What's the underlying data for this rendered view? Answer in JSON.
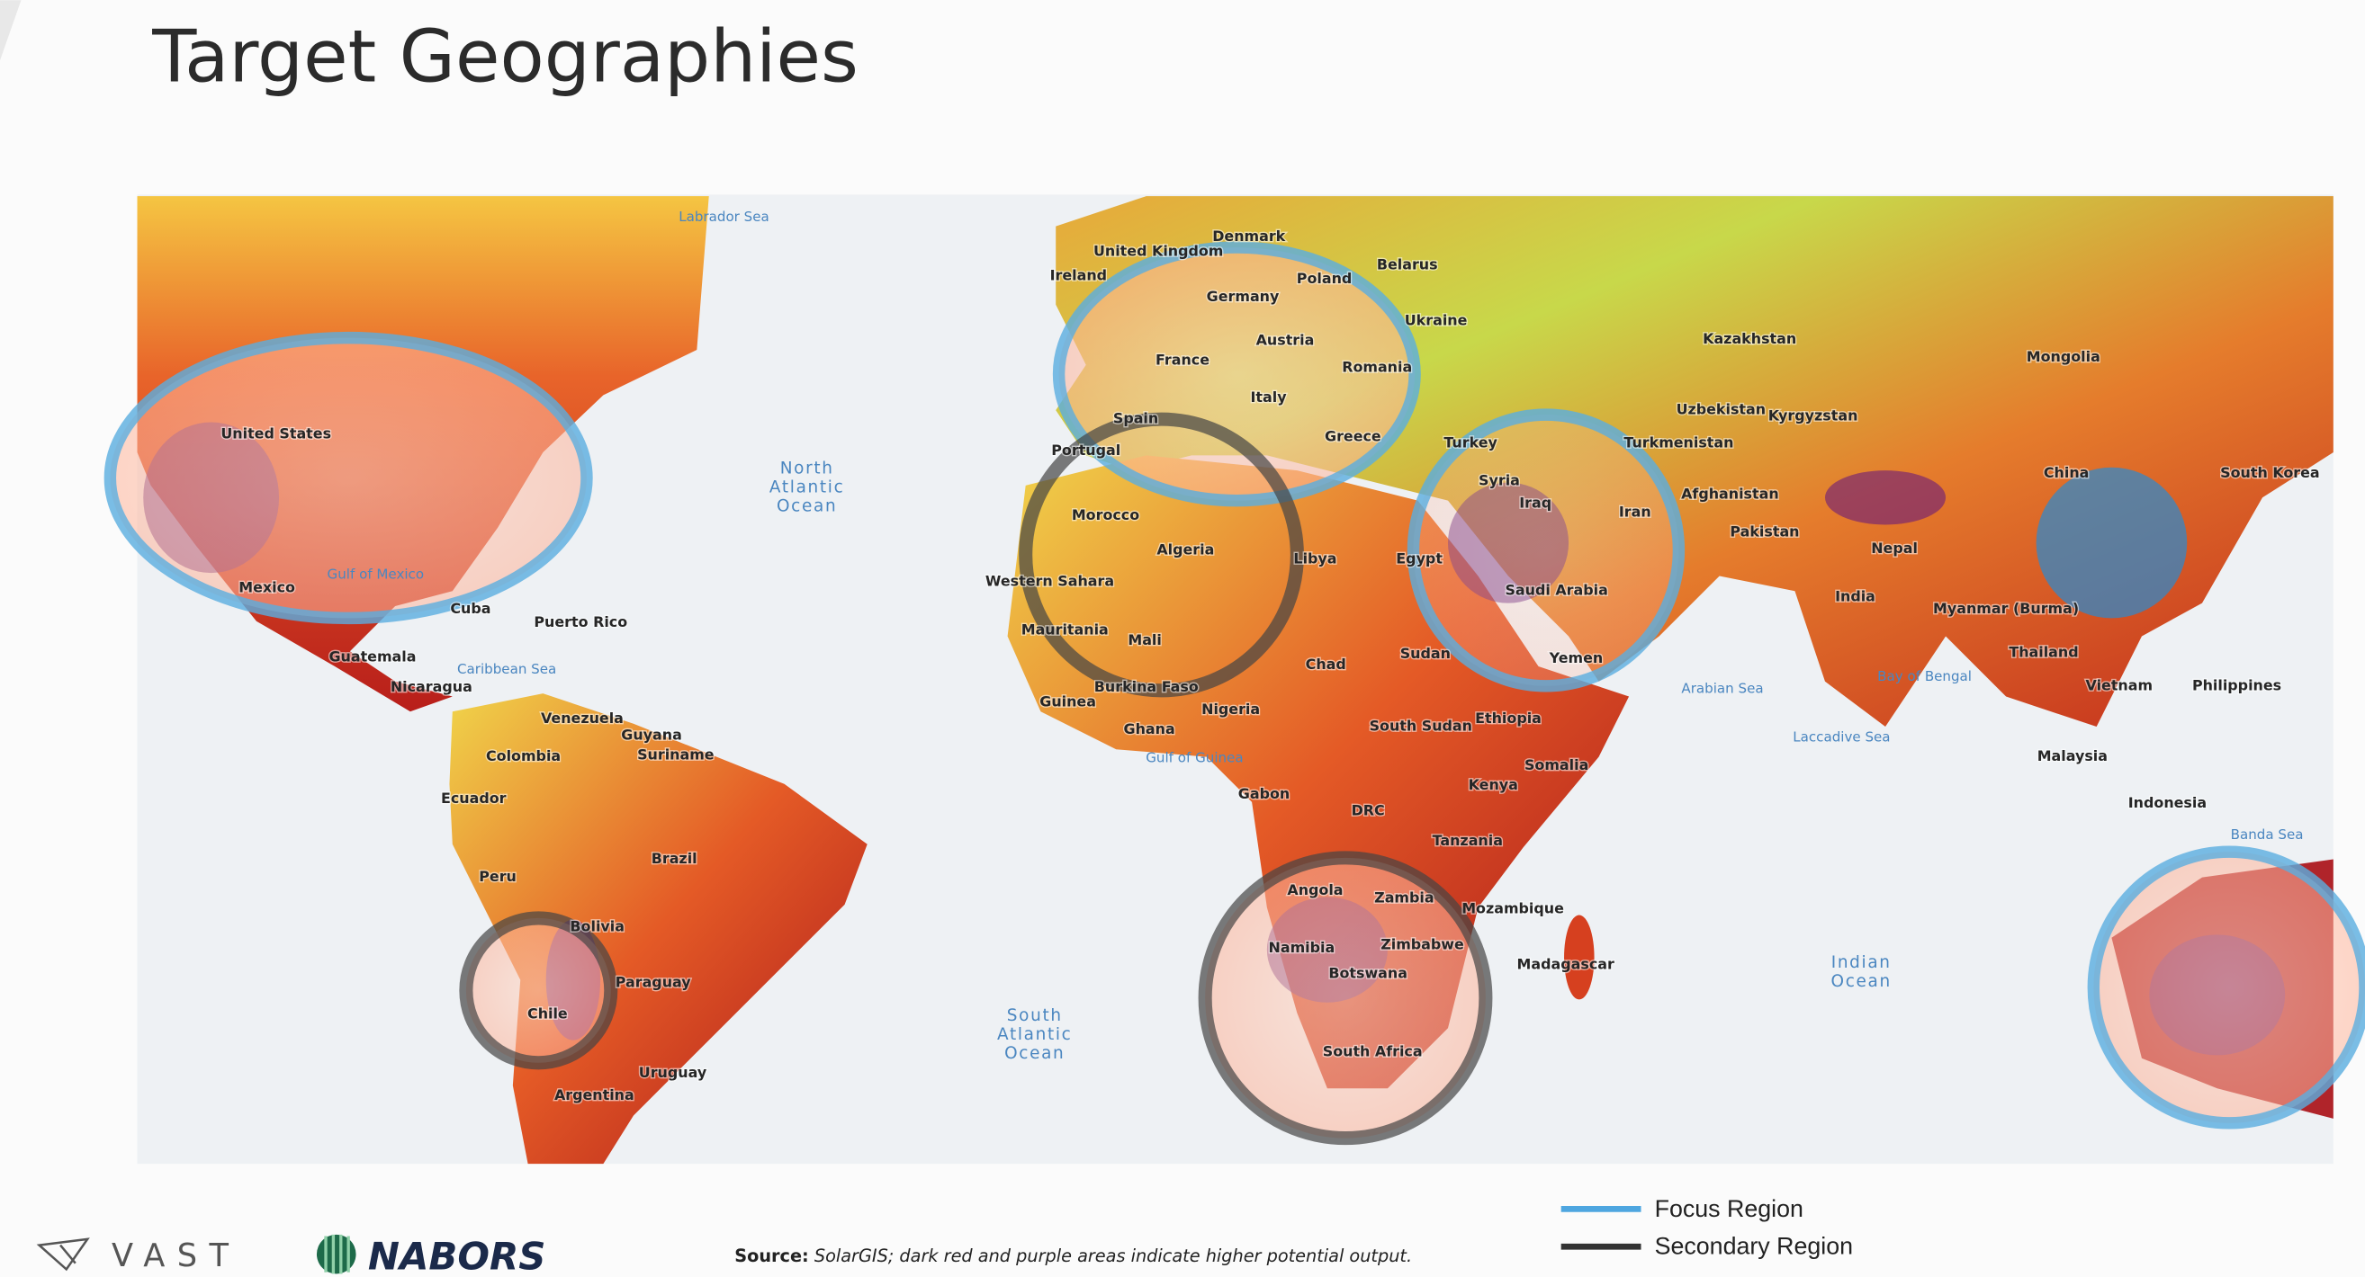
{
  "header": {
    "title": "Target Geographies"
  },
  "map": {
    "country_labels": [
      "United States",
      "Mexico",
      "Cuba",
      "Puerto Rico",
      "Guatemala",
      "Nicaragua",
      "Venezuela",
      "Guyana",
      "Suriname",
      "Colombia",
      "Ecuador",
      "Peru",
      "Brazil",
      "Bolivia",
      "Paraguay",
      "Chile",
      "Uruguay",
      "Argentina",
      "United Kingdom",
      "Denmark",
      "Ireland",
      "Belarus",
      "Poland",
      "Germany",
      "Ukraine",
      "Austria",
      "France",
      "Romania",
      "Italy",
      "Spain",
      "Portugal",
      "Greece",
      "Kazakhstan",
      "Mongolia",
      "Uzbekistan",
      "Kyrgyzstan",
      "Turkey",
      "Turkmenistan",
      "China",
      "South Korea",
      "Syria",
      "Iraq",
      "Iran",
      "Afghanistan",
      "Pakistan",
      "Morocco",
      "Algeria",
      "Libya",
      "Egypt",
      "Nepal",
      "India",
      "Saudi Arabia",
      "Myanmar (Burma)",
      "Western Sahara",
      "Mauritania",
      "Mali",
      "Burkina Faso",
      "Sudan",
      "Chad",
      "Yemen",
      "Thailand",
      "Vietnam",
      "Philippines",
      "Guinea",
      "Ghana",
      "Nigeria",
      "Ethiopia",
      "South Sudan",
      "Malaysia",
      "Somalia",
      "Kenya",
      "Gabon",
      "DRC",
      "Indonesia",
      "Tanzania",
      "Angola",
      "Zambia",
      "Mozambique",
      "Namibia",
      "Zimbabwe",
      "Madagascar",
      "Botswana",
      "South Africa"
    ],
    "sea_labels": [
      "Labrador Sea",
      "Gulf of Mexico",
      "Caribbean Sea",
      "Arabian Sea",
      "Bay of Bengal",
      "Laccadive Sea",
      "Gulf of Guinea",
      "Banda Sea"
    ],
    "ocean_labels": [
      [
        "North",
        "Atlantic",
        "Ocean"
      ],
      [
        "South",
        "Atlantic",
        "Ocean"
      ],
      [
        "Indian",
        "Ocean"
      ]
    ]
  },
  "legend": [
    {
      "name": "Focus Region",
      "color": "#4ea6e0"
    },
    {
      "name": "Secondary Region",
      "color": "#333333"
    }
  ],
  "footer": {
    "source_label": "Source:",
    "source_text": "SolarGIS; dark red and purple areas indicate higher potential output.",
    "logos": [
      "VAST",
      "NABORS"
    ]
  }
}
